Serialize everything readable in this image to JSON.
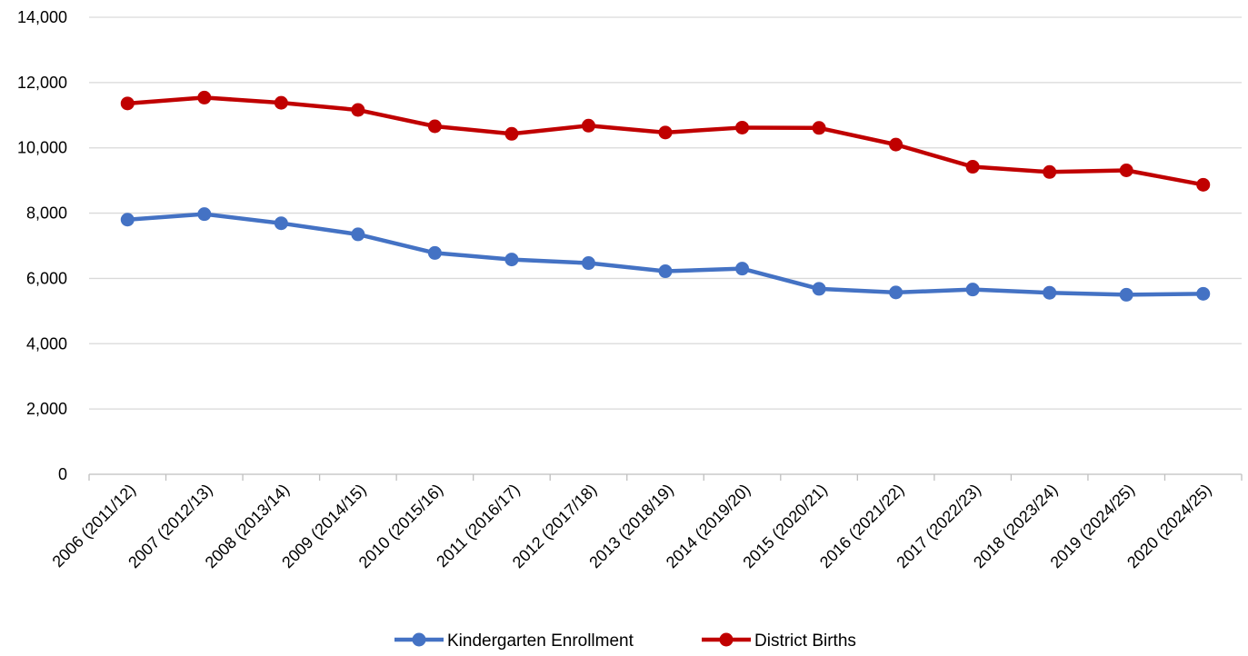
{
  "chart_data": {
    "type": "line",
    "title": "",
    "xlabel": "",
    "ylabel": "",
    "categories": [
      "2006 (2011/12)",
      "2007 (2012/13)",
      "2008 (2013/14)",
      "2009 (2014/15)",
      "2010 (2015/16)",
      "2011 (2016/17)",
      "2012 (2017/18)",
      "2013 (2018/19)",
      "2014 (2019/20)",
      "2015 (2020/21)",
      "2016 (2021/22)",
      "2017 (2022/23)",
      "2018 (2023/24)",
      "2019 (2024/25)",
      "2020 (2024/25)"
    ],
    "series": [
      {
        "name": "Kindergarten Enrollment",
        "color": "#4472C4",
        "values": [
          7800,
          7970,
          7690,
          7350,
          6780,
          6580,
          6470,
          6220,
          6300,
          5680,
          5570,
          5660,
          5560,
          5500,
          5530
        ]
      },
      {
        "name": "District Births",
        "color": "#C00000",
        "values": [
          11360,
          11540,
          11380,
          11160,
          10660,
          10430,
          10680,
          10470,
          10620,
          10610,
          10100,
          9420,
          9260,
          9310,
          8870
        ]
      }
    ],
    "ylim": [
      0,
      14000
    ],
    "yticks": [
      0,
      2000,
      4000,
      6000,
      8000,
      10000,
      12000,
      14000
    ],
    "ytick_labels": [
      "0",
      "2,000",
      "4,000",
      "6,000",
      "8,000",
      "10,000",
      "12,000",
      "14,000"
    ],
    "grid": true,
    "gridline_color": "#D9D9D9",
    "axis_color": "#BFBFBF",
    "legend_position": "bottom"
  }
}
